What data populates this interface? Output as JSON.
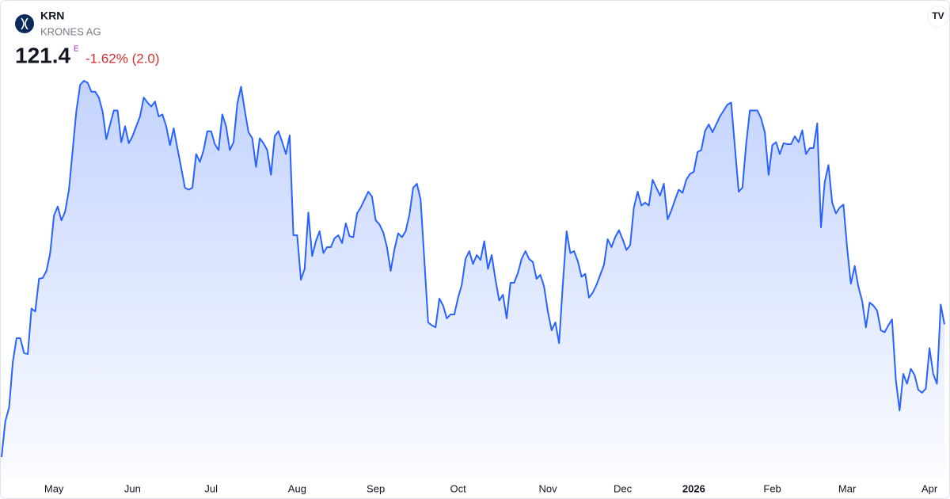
{
  "header": {
    "symbol": "KRN",
    "name": "KRONES AG",
    "price": "121.4",
    "price_flag": "E",
    "change": "-1.62% (2.0)"
  },
  "chart_data": {
    "type": "area",
    "color": "#2962ff",
    "values": [
      108.0,
      111.6,
      113.0,
      117.6,
      120.0,
      120.0,
      118.5,
      118.4,
      123.0,
      122.7,
      126.0,
      126.1,
      126.8,
      128.6,
      132.4,
      133.3,
      131.9,
      132.8,
      135.0,
      139.0,
      143.0,
      145.6,
      146.0,
      145.8,
      144.9,
      144.9,
      144.3,
      142.9,
      140.1,
      141.6,
      143.0,
      143.0,
      139.8,
      141.4,
      139.7,
      140.4,
      141.4,
      142.4,
      144.3,
      143.8,
      143.4,
      143.9,
      142.4,
      142.6,
      141.4,
      139.5,
      141.2,
      139.2,
      137.2,
      135.2,
      135.0,
      135.2,
      138.6,
      137.8,
      139.0,
      140.9,
      140.9,
      139.6,
      139.0,
      142.6,
      141.4,
      139.0,
      139.8,
      143.7,
      145.4,
      143.0,
      140.8,
      140.2,
      137.3,
      140.2,
      139.7,
      139.0,
      136.5,
      140.4,
      140.9,
      139.8,
      138.6,
      140.5,
      130.4,
      130.4,
      125.9,
      127.0,
      132.7,
      128.3,
      129.8,
      130.8,
      128.6,
      129.2,
      129.2,
      130.1,
      130.4,
      129.6,
      131.6,
      130.3,
      130.2,
      132.6,
      133.2,
      134.0,
      134.8,
      134.3,
      131.9,
      131.5,
      130.7,
      129.2,
      126.8,
      129.0,
      130.6,
      130.2,
      130.8,
      132.5,
      135.2,
      135.6,
      134.0,
      127.8,
      121.6,
      121.3,
      121.1,
      124.0,
      123.3,
      122.0,
      122.4,
      122.4,
      124.1,
      125.4,
      128.0,
      128.8,
      127.5,
      128.4,
      127.9,
      129.8,
      127.0,
      128.4,
      125.9,
      123.8,
      124.4,
      122.0,
      125.6,
      125.6,
      126.6,
      128.0,
      128.8,
      128.0,
      127.7,
      126.0,
      126.4,
      125.2,
      122.7,
      120.8,
      121.6,
      119.5,
      125.4,
      130.8,
      128.6,
      128.8,
      127.8,
      126.2,
      126.5,
      124.1,
      124.6,
      125.4,
      126.4,
      127.4,
      130.0,
      129.2,
      130.2,
      130.9,
      130.0,
      128.9,
      129.4,
      133.2,
      134.8,
      133.4,
      133.7,
      133.4,
      136.0,
      135.2,
      134.4,
      135.6,
      132.0,
      132.9,
      134.0,
      135.0,
      134.7,
      136.0,
      136.6,
      136.8,
      138.8,
      139.0,
      140.9,
      141.6,
      140.8,
      141.6,
      142.4,
      143.0,
      143.6,
      143.8,
      139.3,
      134.8,
      135.2,
      139.6,
      143.0,
      143.0,
      143.0,
      142.2,
      140.8,
      136.5,
      139.5,
      139.8,
      138.6,
      139.7,
      139.6,
      139.6,
      140.4,
      139.8,
      141.0,
      138.6,
      139.2,
      139.2,
      141.7,
      131.2,
      135.8,
      137.5,
      133.7,
      132.6,
      133.2,
      133.5,
      129.1,
      125.5,
      127.3,
      125.2,
      123.8,
      121.1,
      123.6,
      123.3,
      122.8,
      120.8,
      120.6,
      121.3,
      121.9,
      115.8,
      112.7,
      116.4,
      115.4,
      116.9,
      116.3,
      114.8,
      114.5,
      114.9,
      119.0,
      116.4,
      115.4,
      123.4,
      121.4
    ],
    "xticks": [
      {
        "value": 14,
        "label": "May"
      },
      {
        "value": 35,
        "label": "Jun"
      },
      {
        "value": 56,
        "label": "Jul"
      },
      {
        "value": 79,
        "label": "Aug"
      },
      {
        "value": 100,
        "label": "Sep"
      },
      {
        "value": 122,
        "label": "Oct"
      },
      {
        "value": 146,
        "label": "Nov"
      },
      {
        "value": 166,
        "label": "Dec"
      },
      {
        "value": 185,
        "label": "2026"
      },
      {
        "value": 206,
        "label": "Feb"
      },
      {
        "value": 226,
        "label": "Mar"
      },
      {
        "value": 248,
        "label": "Apr"
      }
    ]
  }
}
